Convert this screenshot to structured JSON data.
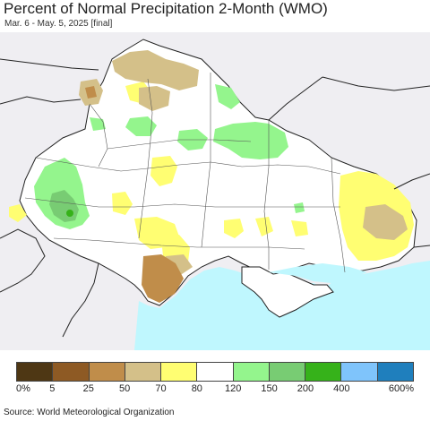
{
  "title": "Percent of Normal Precipitation 2-Month (WMO)",
  "subtitle": "Mar. 6 - May. 5, 2025 [final]",
  "source": "Source: World Meteorological Organization",
  "legend": {
    "colors": [
      "#4e3714",
      "#8e5a24",
      "#c08d4a",
      "#d4c089",
      "#fffe72",
      "#ffffff",
      "#94f58d",
      "#78cc73",
      "#36b21a",
      "#7fc4fb",
      "#1f7fbd"
    ],
    "ticks": [
      "0%",
      "5",
      "25",
      "50",
      "70",
      "80",
      "120",
      "150",
      "200",
      "400",
      "600%"
    ]
  },
  "map": {
    "land_color": "#ffffff",
    "outside_color": "#efeef2",
    "sea_color": "#bff7fe"
  }
}
